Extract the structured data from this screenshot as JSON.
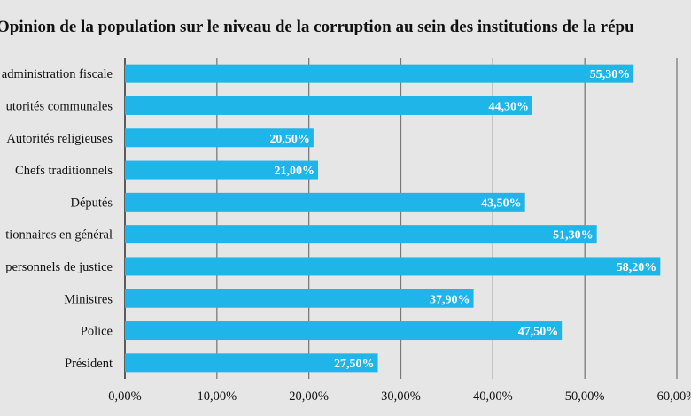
{
  "chart_data": {
    "type": "bar",
    "orientation": "horizontal",
    "title": "Opinion de la population sur le niveau de la corruption au sein des institutions de la répu",
    "categories": [
      "administration fiscale",
      "utorités communales",
      "Autorités religieuses",
      "Chefs traditionnels",
      "Députés",
      "tionnaires en général",
      "personnels de justice",
      "Ministres",
      "Police",
      "Président"
    ],
    "values": [
      55.3,
      44.3,
      20.5,
      21.0,
      43.5,
      51.3,
      58.2,
      37.9,
      47.5,
      27.5
    ],
    "value_labels": [
      "55,30%",
      "44,30%",
      "20,50%",
      "21,00%",
      "43,50%",
      "51,30%",
      "58,20%",
      "37,90%",
      "47,50%",
      "27,50%"
    ],
    "x_ticks": [
      "0,00%",
      "10,00%",
      "20,00%",
      "30,00%",
      "40,00%",
      "50,00%",
      "60,00%"
    ],
    "xlim": [
      0,
      60
    ],
    "xlabel": "",
    "ylabel": "",
    "grid": true,
    "colors": {
      "bar": "#1fb5e8",
      "grid": "#7a7a7a",
      "background": "#e6e6e6",
      "label": "#ffffff"
    }
  }
}
